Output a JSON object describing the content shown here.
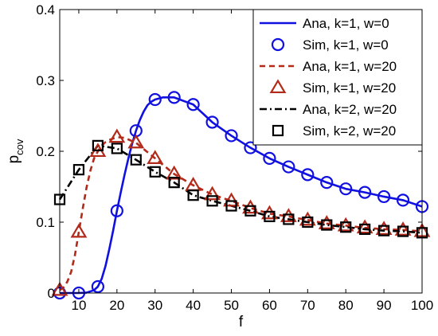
{
  "chart_data": {
    "type": "line",
    "title": "",
    "xlabel": "f",
    "ylabel": "p",
    "ylabel_sub": "cov",
    "xlim": [
      5,
      100
    ],
    "ylim": [
      0,
      0.4
    ],
    "xticks": [
      10,
      20,
      30,
      40,
      50,
      60,
      70,
      80,
      90,
      100
    ],
    "yticks": [
      0,
      0.1,
      0.2,
      0.3,
      0.4
    ],
    "ytick_labels": [
      "0",
      "0.1",
      "0.2",
      "0.3",
      "0.4"
    ],
    "grid": false,
    "legend_position": "top-right",
    "series": [
      {
        "name": "Ana, k=1, w=0",
        "style": "solid",
        "marker": "none",
        "color": "#1010e0",
        "x": [
          5,
          10,
          12,
          14,
          15,
          16,
          17,
          18,
          19,
          20,
          21,
          22,
          23,
          24,
          25,
          26,
          27,
          28,
          29,
          30,
          32,
          35,
          40,
          45,
          50,
          55,
          60,
          65,
          70,
          75,
          80,
          85,
          90,
          95,
          100
        ],
        "y": [
          0,
          0,
          0.0005,
          0.004,
          0.009,
          0.02,
          0.038,
          0.062,
          0.088,
          0.116,
          0.142,
          0.167,
          0.19,
          0.211,
          0.229,
          0.244,
          0.256,
          0.265,
          0.27,
          0.273,
          0.276,
          0.276,
          0.266,
          0.241,
          0.222,
          0.205,
          0.19,
          0.178,
          0.167,
          0.156,
          0.147,
          0.142,
          0.136,
          0.131,
          0.122
        ]
      },
      {
        "name": "Sim, k=1, w=0",
        "style": "none",
        "marker": "circle",
        "color": "#1010e0",
        "x": [
          5,
          10,
          15,
          20,
          25,
          30,
          35,
          40,
          45,
          50,
          55,
          60,
          65,
          70,
          75,
          80,
          85,
          90,
          95,
          100
        ],
        "y": [
          0,
          0,
          0.009,
          0.116,
          0.229,
          0.273,
          0.276,
          0.266,
          0.241,
          0.222,
          0.205,
          0.19,
          0.178,
          0.167,
          0.156,
          0.147,
          0.142,
          0.136,
          0.131,
          0.122
        ]
      },
      {
        "name": "Ana, k=1, w=20",
        "style": "dashed",
        "marker": "none",
        "color": "#b22a1a",
        "x": [
          5,
          6,
          7,
          8,
          9,
          10,
          11,
          12,
          13,
          14,
          15,
          16,
          17,
          18,
          19,
          20,
          22,
          25,
          30,
          35,
          40,
          45,
          50,
          55,
          60,
          65,
          70,
          75,
          80,
          85,
          90,
          95,
          100
        ],
        "y": [
          0.004,
          0.008,
          0.016,
          0.03,
          0.054,
          0.086,
          0.118,
          0.148,
          0.172,
          0.19,
          0.2,
          0.208,
          0.213,
          0.216,
          0.218,
          0.22,
          0.219,
          0.212,
          0.19,
          0.168,
          0.152,
          0.139,
          0.13,
          0.12,
          0.112,
          0.108,
          0.103,
          0.098,
          0.095,
          0.092,
          0.09,
          0.089,
          0.087
        ]
      },
      {
        "name": "Sim, k=1, w=20",
        "style": "none",
        "marker": "triangle",
        "color": "#b22a1a",
        "x": [
          5,
          10,
          15,
          20,
          25,
          30,
          35,
          40,
          45,
          50,
          55,
          60,
          65,
          70,
          75,
          80,
          85,
          90,
          95,
          100
        ],
        "y": [
          0.004,
          0.086,
          0.2,
          0.22,
          0.212,
          0.19,
          0.168,
          0.152,
          0.139,
          0.13,
          0.12,
          0.112,
          0.108,
          0.103,
          0.098,
          0.095,
          0.092,
          0.09,
          0.089,
          0.087
        ]
      },
      {
        "name": "Ana, k=2, w=20",
        "style": "dashdot",
        "marker": "none",
        "color": "#000000",
        "x": [
          5,
          10,
          15,
          20,
          25,
          30,
          35,
          40,
          45,
          50,
          55,
          60,
          65,
          70,
          75,
          80,
          85,
          90,
          95,
          100
        ],
        "y": [
          0.132,
          0.174,
          0.208,
          0.204,
          0.188,
          0.171,
          0.156,
          0.138,
          0.13,
          0.123,
          0.116,
          0.108,
          0.104,
          0.1,
          0.096,
          0.093,
          0.09,
          0.088,
          0.087,
          0.085
        ]
      },
      {
        "name": "Sim, k=2, w=20",
        "style": "none",
        "marker": "square",
        "color": "#000000",
        "x": [
          5,
          10,
          15,
          20,
          25,
          30,
          35,
          40,
          45,
          50,
          55,
          60,
          65,
          70,
          75,
          80,
          85,
          90,
          95,
          100
        ],
        "y": [
          0.132,
          0.174,
          0.208,
          0.204,
          0.188,
          0.171,
          0.156,
          0.138,
          0.13,
          0.123,
          0.116,
          0.108,
          0.104,
          0.1,
          0.096,
          0.093,
          0.09,
          0.088,
          0.087,
          0.085
        ]
      }
    ]
  }
}
